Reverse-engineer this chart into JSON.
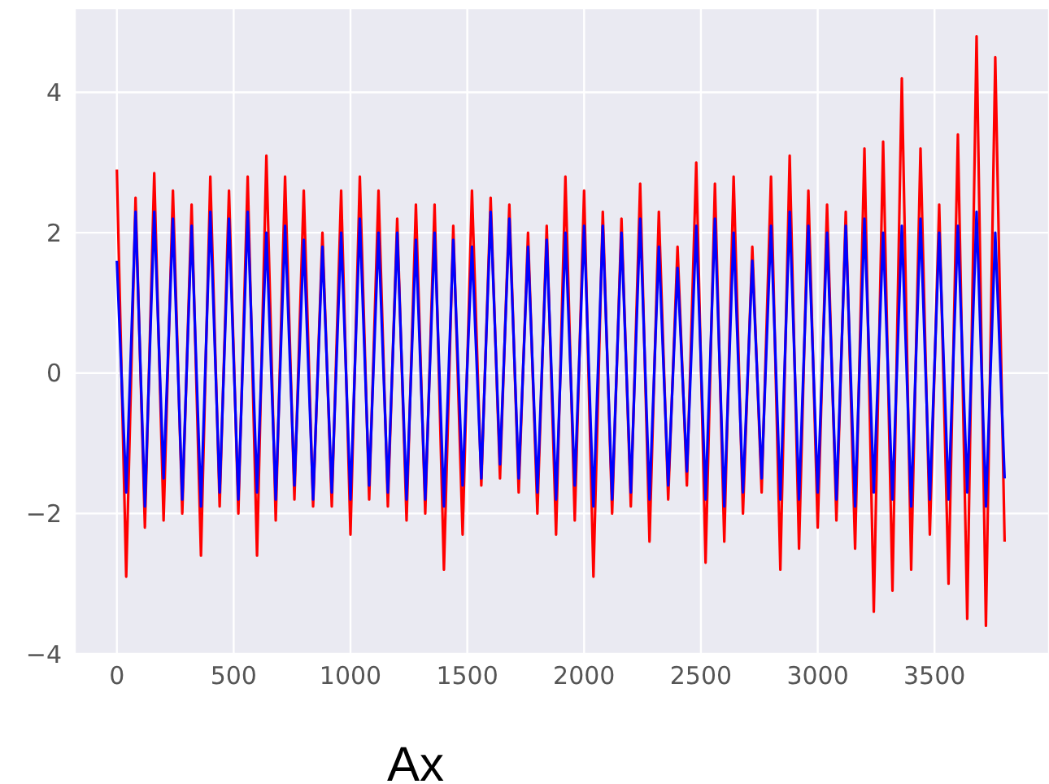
{
  "chart_data": {
    "type": "line",
    "xlabel": "Ax",
    "x": [
      0,
      40,
      80,
      120,
      160,
      200,
      240,
      280,
      320,
      360,
      400,
      440,
      480,
      520,
      560,
      600,
      640,
      680,
      720,
      760,
      800,
      840,
      880,
      920,
      960,
      1000,
      1040,
      1080,
      1120,
      1160,
      1200,
      1240,
      1280,
      1320,
      1360,
      1400,
      1440,
      1480,
      1520,
      1560,
      1600,
      1640,
      1680,
      1720,
      1760,
      1800,
      1840,
      1880,
      1920,
      1960,
      2000,
      2040,
      2080,
      2120,
      2160,
      2200,
      2240,
      2280,
      2320,
      2360,
      2400,
      2440,
      2480,
      2520,
      2560,
      2600,
      2640,
      2680,
      2720,
      2760,
      2800,
      2840,
      2880,
      2920,
      2960,
      3000,
      3040,
      3080,
      3120,
      3160,
      3200,
      3240,
      3280,
      3320,
      3360,
      3400,
      3440,
      3480,
      3520,
      3560,
      3600,
      3640,
      3680,
      3720,
      3760,
      3800
    ],
    "series": [
      {
        "color": "#ff0000",
        "values": [
          2.9,
          -2.9,
          2.5,
          -2.2,
          2.85,
          -2.1,
          2.6,
          -2.0,
          2.4,
          -2.6,
          2.8,
          -1.9,
          2.6,
          -2.0,
          2.8,
          -2.6,
          3.1,
          -2.1,
          2.8,
          -1.8,
          2.6,
          -1.9,
          2.0,
          -1.9,
          2.6,
          -2.3,
          2.8,
          -1.8,
          2.6,
          -1.9,
          2.2,
          -2.1,
          2.4,
          -2.0,
          2.4,
          -2.8,
          2.1,
          -2.3,
          2.6,
          -1.6,
          2.5,
          -1.5,
          2.4,
          -1.7,
          2.0,
          -2.0,
          2.1,
          -2.3,
          2.8,
          -2.1,
          2.6,
          -2.9,
          2.3,
          -2.0,
          2.2,
          -1.9,
          2.7,
          -2.4,
          2.3,
          -1.8,
          1.8,
          -1.6,
          3.0,
          -2.7,
          2.7,
          -2.4,
          2.8,
          -2.0,
          1.8,
          -1.7,
          2.8,
          -2.8,
          3.1,
          -2.5,
          2.6,
          -2.2,
          2.4,
          -2.1,
          2.3,
          -2.5,
          3.2,
          -3.4,
          3.3,
          -3.1,
          4.2,
          -2.8,
          3.2,
          -2.3,
          2.4,
          -3.0,
          3.4,
          -3.5,
          4.8,
          -3.6,
          4.5,
          -2.4
        ]
      },
      {
        "color": "#0000ff",
        "values": [
          1.6,
          -1.7,
          2.3,
          -1.9,
          2.3,
          -1.5,
          2.2,
          -1.8,
          2.1,
          -1.9,
          2.3,
          -1.7,
          2.2,
          -1.8,
          2.3,
          -1.7,
          2.0,
          -1.8,
          2.1,
          -1.6,
          1.9,
          -1.8,
          1.8,
          -1.7,
          2.0,
          -1.8,
          2.2,
          -1.6,
          2.0,
          -1.7,
          2.0,
          -1.8,
          1.9,
          -1.8,
          2.0,
          -1.9,
          1.9,
          -1.6,
          1.8,
          -1.5,
          2.3,
          -1.3,
          2.2,
          -1.5,
          1.8,
          -1.7,
          1.9,
          -1.8,
          2.0,
          -1.6,
          2.1,
          -1.9,
          2.1,
          -1.8,
          2.0,
          -1.7,
          2.2,
          -1.8,
          1.8,
          -1.6,
          1.5,
          -1.4,
          2.1,
          -1.8,
          2.2,
          -1.9,
          2.0,
          -1.7,
          1.6,
          -1.5,
          2.1,
          -1.8,
          2.3,
          -1.8,
          2.1,
          -1.7,
          2.0,
          -1.8,
          2.1,
          -1.9,
          2.2,
          -1.7,
          2.0,
          -1.8,
          2.1,
          -1.9,
          2.2,
          -1.8,
          2.0,
          -1.8,
          2.1,
          -1.7,
          2.3,
          -1.9,
          2.0,
          -1.5
        ]
      }
    ],
    "xlim": [
      -180,
      3990
    ],
    "xticks": [
      0,
      500,
      1000,
      1500,
      2000,
      2500,
      3000,
      3500
    ],
    "ylim": [
      -4,
      5.2
    ],
    "yticks": [
      -4,
      -2,
      0,
      2,
      4
    ],
    "grid": true,
    "line_style": "solid"
  }
}
